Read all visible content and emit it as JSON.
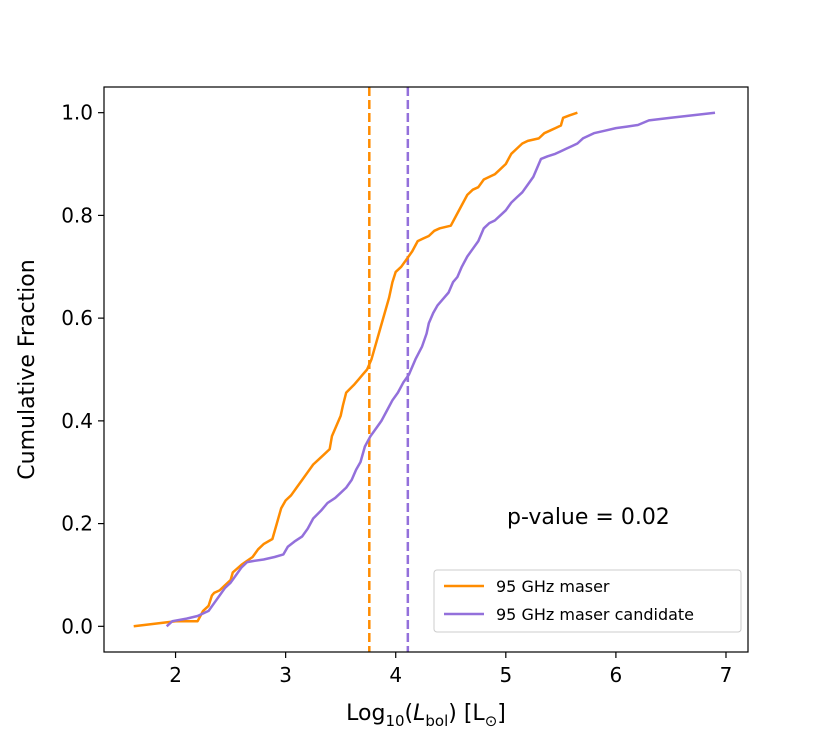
{
  "chart_data": {
    "type": "line",
    "xlabel_parts": {
      "prefix": "Log",
      "sub": "10",
      "open": "(",
      "var": "L",
      "varsub": "bol",
      "close": ") [L",
      "unit_sub": "⊙",
      "end": "]"
    },
    "ylabel": "Cumulative Fraction",
    "xlim": [
      1.35,
      7.2
    ],
    "ylim": [
      -0.05,
      1.05
    ],
    "x_ticks": [
      2,
      3,
      4,
      5,
      6,
      7
    ],
    "y_ticks": [
      0.0,
      0.2,
      0.4,
      0.6,
      0.8,
      1.0
    ],
    "x_tick_labels": [
      "2",
      "3",
      "4",
      "5",
      "6",
      "7"
    ],
    "y_tick_labels": [
      "0.0",
      "0.2",
      "0.4",
      "0.6",
      "0.8",
      "1.0"
    ],
    "grid": false,
    "legend_position": "bottom-right",
    "annotation": "p-value = 0.02",
    "series": [
      {
        "name": "95 GHz maser",
        "color": "#ff8c00",
        "median": 3.76,
        "x": [
          1.62,
          2.0,
          2.2,
          2.25,
          2.3,
          2.33,
          2.35,
          2.4,
          2.45,
          2.5,
          2.52,
          2.6,
          2.7,
          2.75,
          2.8,
          2.88,
          2.92,
          2.96,
          3.0,
          3.05,
          3.1,
          3.15,
          3.2,
          3.25,
          3.3,
          3.35,
          3.4,
          3.42,
          3.46,
          3.5,
          3.52,
          3.55,
          3.62,
          3.66,
          3.7,
          3.74,
          3.78,
          3.82,
          3.86,
          3.9,
          3.94,
          3.97,
          4.0,
          4.05,
          4.1,
          4.15,
          4.2,
          4.25,
          4.3,
          4.35,
          4.4,
          4.5,
          4.55,
          4.6,
          4.65,
          4.7,
          4.75,
          4.8,
          4.85,
          4.9,
          4.95,
          5.0,
          5.05,
          5.1,
          5.15,
          5.2,
          5.3,
          5.35,
          5.4,
          5.45,
          5.5,
          5.52,
          5.58,
          5.65
        ],
        "y": [
          0.0,
          0.01,
          0.01,
          0.03,
          0.04,
          0.06,
          0.065,
          0.07,
          0.08,
          0.09,
          0.105,
          0.12,
          0.135,
          0.15,
          0.16,
          0.17,
          0.2,
          0.23,
          0.245,
          0.255,
          0.27,
          0.285,
          0.3,
          0.315,
          0.325,
          0.335,
          0.345,
          0.37,
          0.39,
          0.41,
          0.43,
          0.455,
          0.47,
          0.48,
          0.49,
          0.5,
          0.52,
          0.55,
          0.58,
          0.61,
          0.64,
          0.67,
          0.69,
          0.7,
          0.715,
          0.73,
          0.75,
          0.755,
          0.76,
          0.77,
          0.775,
          0.78,
          0.8,
          0.82,
          0.84,
          0.85,
          0.855,
          0.87,
          0.875,
          0.88,
          0.89,
          0.9,
          0.92,
          0.93,
          0.94,
          0.945,
          0.95,
          0.96,
          0.965,
          0.97,
          0.975,
          0.99,
          0.995,
          1.0
        ]
      },
      {
        "name": "95 GHz maser candidate",
        "color": "#9370db",
        "median": 4.11,
        "x": [
          1.92,
          1.97,
          2.1,
          2.2,
          2.3,
          2.35,
          2.4,
          2.45,
          2.5,
          2.55,
          2.6,
          2.65,
          2.7,
          2.8,
          2.9,
          2.98,
          3.02,
          3.08,
          3.15,
          3.2,
          3.25,
          3.32,
          3.38,
          3.45,
          3.5,
          3.55,
          3.6,
          3.64,
          3.68,
          3.72,
          3.77,
          3.82,
          3.87,
          3.92,
          3.97,
          4.02,
          4.07,
          4.12,
          4.18,
          4.24,
          4.28,
          4.3,
          4.34,
          4.38,
          4.42,
          4.48,
          4.52,
          4.56,
          4.6,
          4.65,
          4.7,
          4.75,
          4.8,
          4.85,
          4.9,
          4.95,
          5.0,
          5.05,
          5.1,
          5.15,
          5.2,
          5.25,
          5.3,
          5.32,
          5.38,
          5.45,
          5.5,
          5.55,
          5.6,
          5.65,
          5.7,
          5.8,
          5.9,
          6.0,
          6.1,
          6.2,
          6.3,
          6.5,
          6.7,
          6.9
        ],
        "y": [
          0.0,
          0.01,
          0.015,
          0.02,
          0.03,
          0.045,
          0.06,
          0.075,
          0.085,
          0.1,
          0.115,
          0.125,
          0.127,
          0.13,
          0.135,
          0.14,
          0.155,
          0.165,
          0.175,
          0.19,
          0.21,
          0.225,
          0.24,
          0.25,
          0.26,
          0.27,
          0.285,
          0.305,
          0.32,
          0.35,
          0.37,
          0.385,
          0.4,
          0.42,
          0.44,
          0.455,
          0.475,
          0.49,
          0.52,
          0.545,
          0.57,
          0.59,
          0.61,
          0.625,
          0.635,
          0.65,
          0.67,
          0.68,
          0.7,
          0.72,
          0.735,
          0.75,
          0.775,
          0.785,
          0.79,
          0.8,
          0.81,
          0.825,
          0.835,
          0.845,
          0.86,
          0.875,
          0.9,
          0.91,
          0.915,
          0.92,
          0.925,
          0.93,
          0.935,
          0.94,
          0.95,
          0.96,
          0.965,
          0.97,
          0.973,
          0.976,
          0.985,
          0.99,
          0.995,
          1.0
        ]
      }
    ]
  }
}
